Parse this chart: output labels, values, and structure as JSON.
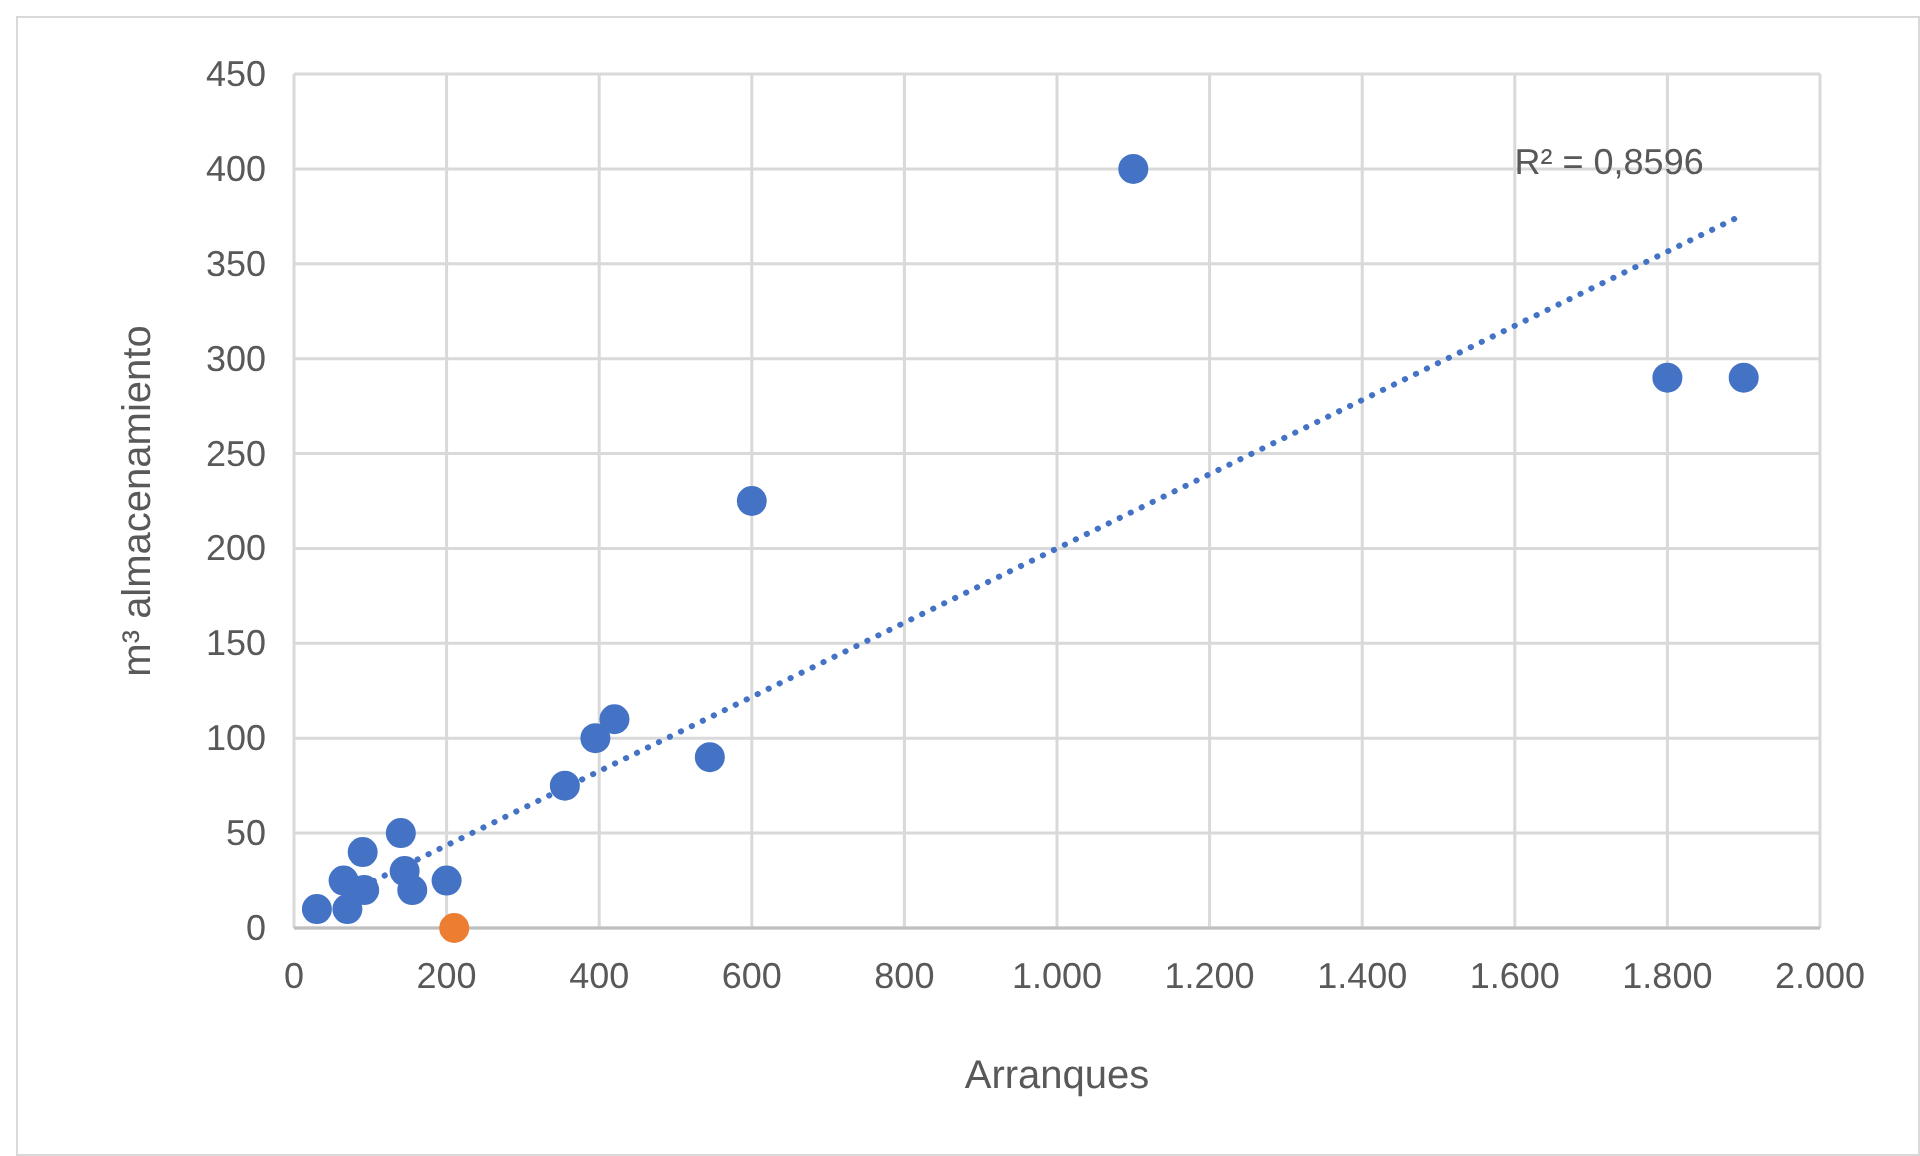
{
  "chart_data": {
    "type": "scatter",
    "xlabel": "Arranques",
    "ylabel": "m³ almacenamiento",
    "xlim": [
      0,
      2000
    ],
    "ylim": [
      0,
      450
    ],
    "xticks": [
      0,
      200,
      400,
      600,
      800,
      {
        "value": 1000,
        "label": "1.000"
      },
      {
        "value": 1200,
        "label": "1.200"
      },
      {
        "value": 1400,
        "label": "1.400"
      },
      {
        "value": 1600,
        "label": "1.600"
      },
      {
        "value": 1800,
        "label": "1.800"
      },
      {
        "value": 2000,
        "label": "2.000"
      }
    ],
    "yticks": [
      0,
      50,
      100,
      150,
      200,
      250,
      300,
      350,
      400,
      450
    ],
    "grid": true,
    "annotations": [
      "R² = 0,8596"
    ],
    "series": [
      {
        "color": "#4472c4",
        "marker": "circle",
        "x": [
          30,
          70,
          65,
          92,
          90,
          140,
          145,
          155,
          200,
          355,
          395,
          420,
          545,
          600,
          1100,
          1800,
          1900
        ],
        "values": [
          10,
          10,
          25,
          20,
          40,
          50,
          30,
          20,
          25,
          75,
          100,
          110,
          90,
          225,
          400,
          290,
          290
        ]
      },
      {
        "color": "#ed7d31",
        "marker": "circle",
        "x": [
          210
        ],
        "values": [
          0
        ]
      },
      {
        "type": "line",
        "color": "#4472c4",
        "line_style": "dotted",
        "marker": "none",
        "x": [
          90,
          1900
        ],
        "values": [
          22,
          376
        ]
      }
    ]
  }
}
